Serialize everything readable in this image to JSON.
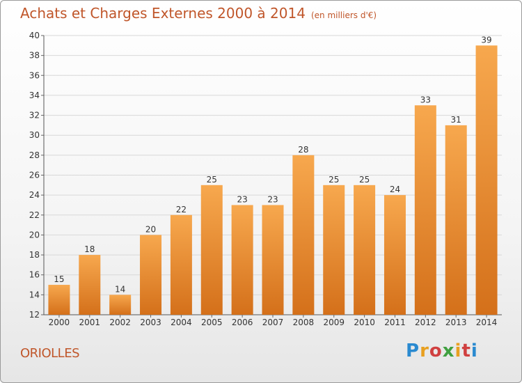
{
  "header": {
    "title": "Achats et Charges Externes 2000 à 2014",
    "subtitle": "(en milliers d'€)"
  },
  "footer": {
    "place": "ORIOLLES",
    "logo_text": "Proxiti"
  },
  "colors": {
    "bar_top": "#f7a84e",
    "bar_bottom": "#d4701a",
    "title": "#c0562a"
  },
  "chart_data": {
    "type": "bar",
    "title": "Achats et Charges Externes 2000 à 2014",
    "subtitle": "(en milliers d'€)",
    "categories": [
      "2000",
      "2001",
      "2002",
      "2003",
      "2004",
      "2005",
      "2006",
      "2007",
      "2008",
      "2009",
      "2010",
      "2011",
      "2012",
      "2013",
      "2014"
    ],
    "values": [
      15,
      18,
      14,
      20,
      22,
      25,
      23,
      23,
      28,
      25,
      25,
      24,
      33,
      31,
      39
    ],
    "xlabel": "",
    "ylabel": "",
    "ylim": [
      12,
      40
    ],
    "yticks": [
      12,
      14,
      16,
      18,
      20,
      22,
      24,
      26,
      28,
      30,
      32,
      34,
      36,
      38,
      40
    ],
    "grid": true,
    "data_labels": true
  }
}
